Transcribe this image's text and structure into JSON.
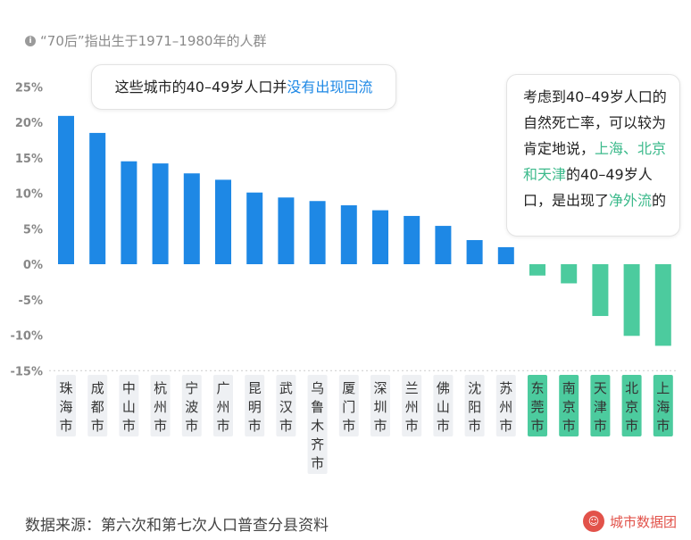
{
  "note": "“70后”指出生于1971–1980年的人群",
  "callout1": {
    "text": "这些城市的40–49岁人口并",
    "highlight": "没有出现回流"
  },
  "callout2": {
    "parts": [
      {
        "text": "考虑到40–49岁人口的自然死亡率，可以较为肯定地说，",
        "hl": false
      },
      {
        "text": "上海、北京和天津",
        "hl": true
      },
      {
        "text": "的40–49岁人口，是出现了",
        "hl": false
      },
      {
        "text": "净外流",
        "hl": true
      },
      {
        "text": "的",
        "hl": false
      }
    ]
  },
  "footer": "数据来源：第六次和第七次人口普查分县资料",
  "logo": "城市数据团",
  "colors": {
    "positive": "#1e88e5",
    "negative": "#4ccb9e",
    "label_bg": "#eef0f3"
  },
  "chart_data": {
    "type": "bar",
    "ylim": [
      -15,
      25
    ],
    "yticks": [
      "25%",
      "20%",
      "15%",
      "10%",
      "5%",
      "0%",
      "-5%",
      "-10%",
      "-15%"
    ],
    "categories": [
      "珠海市",
      "成都市",
      "中山市",
      "杭州市",
      "宁波市",
      "广州市",
      "昆明市",
      "武汉市",
      "乌鲁木齐市",
      "厦门市",
      "深圳市",
      "兰州市",
      "佛山市",
      "沈阳市",
      "苏州市",
      "东莞市",
      "南京市",
      "天津市",
      "北京市",
      "上海市"
    ],
    "values": [
      20.9,
      18.5,
      14.5,
      14.2,
      12.8,
      11.9,
      10.1,
      9.4,
      8.9,
      8.3,
      7.6,
      6.8,
      5.4,
      3.4,
      2.4,
      -1.6,
      -2.7,
      -7.3,
      -10.1,
      -11.5
    ],
    "grid": true
  }
}
